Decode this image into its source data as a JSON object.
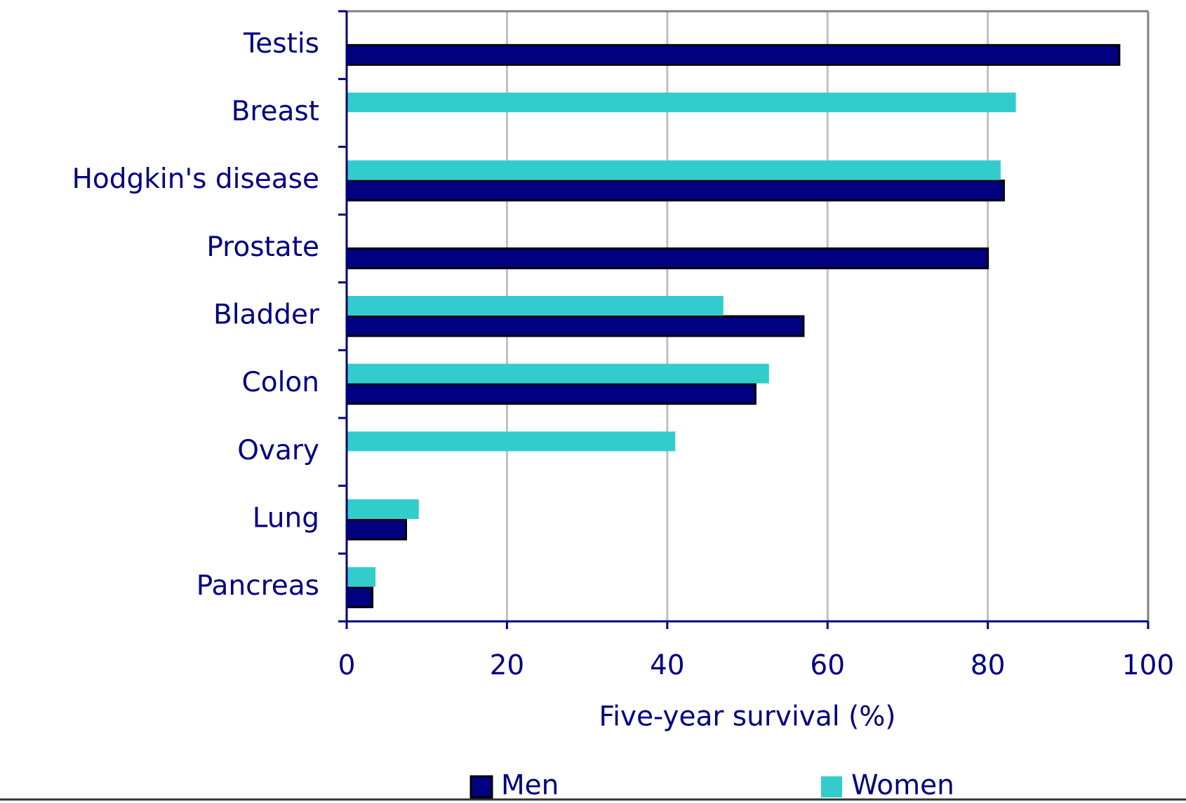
{
  "chart_data": {
    "type": "barh",
    "categories": [
      "Testis",
      "Breast",
      "Hodgkin's disease",
      "Prostate",
      "Bladder",
      "Colon",
      "Ovary",
      "Lung",
      "Pancreas"
    ],
    "series": [
      {
        "name": "Men",
        "color": "#000080",
        "values": [
          96.4,
          null,
          82,
          80,
          57,
          51,
          null,
          7.4,
          3.2
        ]
      },
      {
        "name": "Women",
        "color": "#33cccc",
        "values": [
          null,
          83.5,
          81.6,
          null,
          47,
          52.7,
          41,
          9,
          3.6
        ]
      }
    ],
    "x_label": "Five-year survival (%)",
    "xlim": [
      0,
      100
    ],
    "xticks": [
      0,
      20,
      40,
      60,
      80,
      100
    ],
    "grid": true,
    "legend": "bottom"
  }
}
